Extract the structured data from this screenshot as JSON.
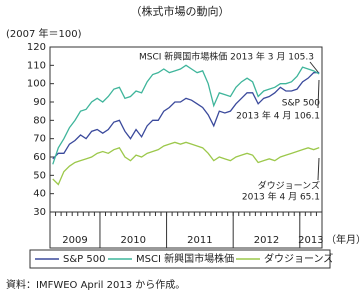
{
  "chart_data": {
    "type": "line",
    "title": "（株式市場の動向）",
    "y_unit_label": "(2007 年＝100)",
    "categories": [
      null,
      null,
      null,
      null,
      null,
      null,
      null,
      null,
      null,
      null,
      null,
      null,
      null,
      null,
      null,
      null,
      null,
      null,
      null,
      null,
      null,
      null,
      null,
      null,
      null,
      null,
      null,
      null,
      null,
      null,
      null,
      null,
      null,
      null,
      null,
      null,
      null,
      null,
      null,
      null,
      null,
      null,
      null,
      null,
      null,
      null,
      null,
      null,
      null
    ],
    "year_labels": [
      "2009",
      "2010",
      "2011",
      "2012",
      "2013"
    ],
    "x_unit_label": "（年月）",
    "series": [
      {
        "name": "S&P 500",
        "color": "#3b4a9c",
        "values": [
          59,
          62,
          62,
          67,
          69,
          72,
          70,
          74,
          75,
          73,
          75,
          79,
          80,
          74,
          70,
          75,
          71,
          77,
          80,
          80,
          85,
          87,
          90,
          90,
          92,
          91,
          89,
          87,
          83,
          77,
          85,
          84,
          85,
          89,
          92,
          95,
          95,
          89,
          92,
          93,
          95,
          98,
          96,
          96,
          97,
          101,
          103,
          106,
          106.1
        ]
      },
      {
        "name": "MSCI 新興国市場株価",
        "color": "#3fb59b",
        "values": [
          56,
          65,
          70,
          76,
          80,
          85,
          86,
          90,
          92,
          90,
          93,
          97,
          98,
          92,
          93,
          96,
          95,
          101,
          105,
          106,
          108,
          106,
          107,
          108,
          110,
          108,
          106,
          107,
          100,
          88,
          95,
          94,
          93,
          98,
          101,
          103,
          101,
          93,
          96,
          97,
          98,
          100,
          100,
          101,
          104,
          109,
          108,
          107,
          105.3
        ]
      },
      {
        "name": "ダウジョーンズ",
        "color": "#9cc84b",
        "values": [
          48,
          45,
          52,
          55,
          57,
          58,
          59,
          60,
          62,
          63,
          62,
          64,
          65,
          60,
          58,
          61,
          60,
          62,
          63,
          64,
          66,
          67,
          68,
          67,
          68,
          67,
          66,
          65,
          62,
          58,
          60,
          59,
          58,
          60,
          61,
          62,
          61,
          57,
          58,
          59,
          58,
          60,
          61,
          62,
          63,
          64,
          65,
          64,
          65.1
        ]
      }
    ],
    "ylim": [
      30,
      120
    ],
    "yticks": [
      30,
      40,
      50,
      60,
      70,
      80,
      90,
      100,
      110,
      120
    ],
    "grid": false,
    "annotations": [
      {
        "text": "MSCI 新興国市場株価 2013 年 3 月 105.3"
      },
      {
        "text": "S&P 500"
      },
      {
        "text": "2013 年 4 月 106.1"
      },
      {
        "text": "ダウジョーンズ"
      },
      {
        "text": "2013 年 4 月 65.1"
      }
    ],
    "source": "資料：IMFWEO April 2013 から作成。"
  }
}
